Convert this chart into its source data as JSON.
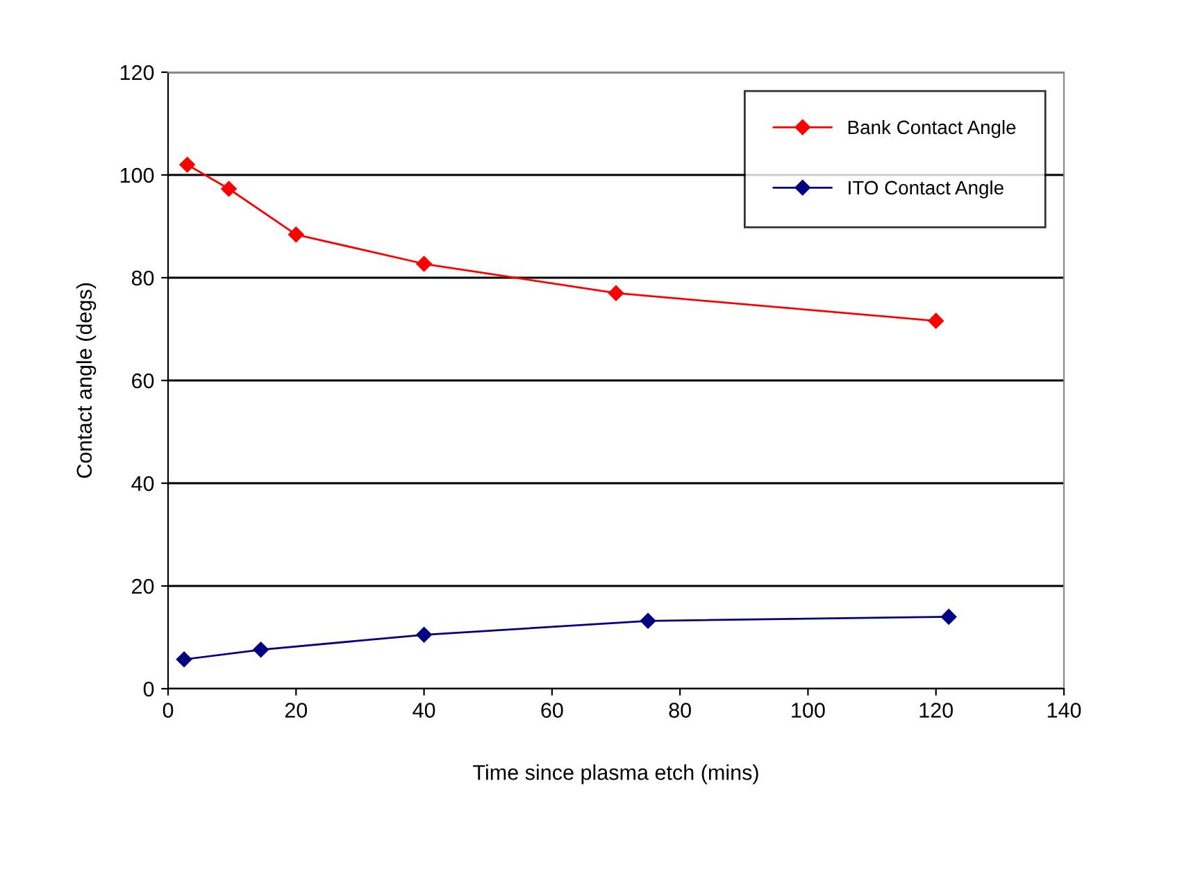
{
  "chart_data": {
    "type": "line",
    "xlabel": "Time since plasma etch (mins)",
    "ylabel": "Contact angle (degs)",
    "xlim": [
      0,
      140
    ],
    "xticks": [
      0,
      20,
      40,
      60,
      80,
      100,
      120,
      140
    ],
    "ylim": [
      0,
      120
    ],
    "yticks": [
      0,
      20,
      40,
      60,
      80,
      100,
      120
    ],
    "grid": "y",
    "legend": "top right",
    "marker": "diamond",
    "line_style": "solid",
    "series": [
      {
        "name": "Bank Contact Angle",
        "color": "#ff0000",
        "x": [
          3,
          9.5,
          20,
          40,
          70,
          120
        ],
        "values": [
          102,
          97.3,
          88.4,
          82.7,
          77,
          71.6
        ]
      },
      {
        "name": "ITO Contact Angle",
        "color": "#000080",
        "x": [
          2.5,
          14.5,
          40,
          75,
          122
        ],
        "values": [
          5.7,
          7.6,
          10.5,
          13.2,
          14
        ]
      }
    ]
  }
}
